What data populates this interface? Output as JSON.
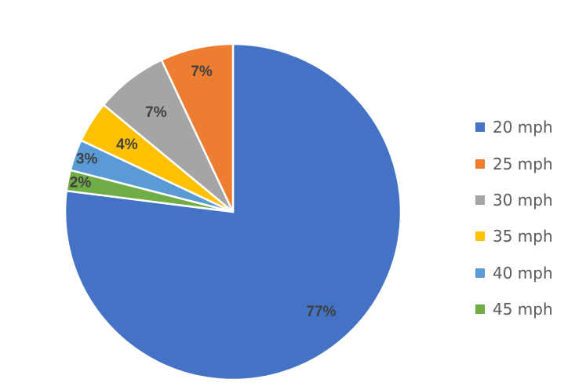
{
  "chart_data": {
    "type": "pie",
    "title": "",
    "categories": [
      "20 mph",
      "25 mph",
      "30 mph",
      "35 mph",
      "40 mph",
      "45 mph"
    ],
    "values": [
      77,
      7,
      7,
      4,
      3,
      2
    ],
    "data_labels": [
      "77%",
      "7%",
      "7%",
      "4%",
      "3%",
      "2%"
    ],
    "colors": [
      "#4472C4",
      "#ED7D31",
      "#A5A5A5",
      "#FFC000",
      "#5B9BD5",
      "#70AD47"
    ],
    "legend_position": "right",
    "start_angle": "12 o'clock",
    "direction": "clockwise"
  }
}
